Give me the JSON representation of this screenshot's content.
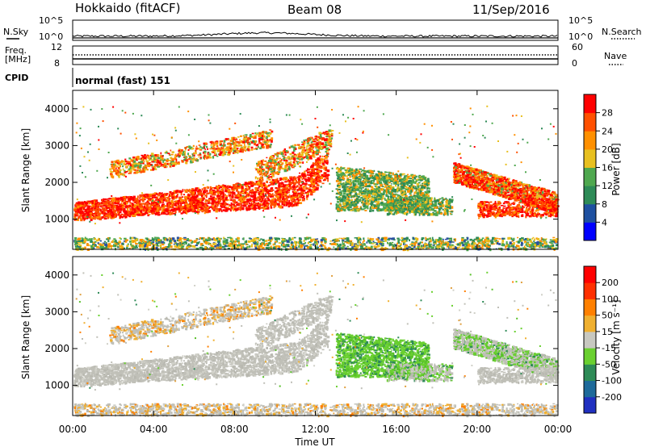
{
  "header": {
    "title": "Hokkaido (fitACF)",
    "beam": "Beam 08",
    "date": "11/Sep/2016"
  },
  "top_panels": {
    "nsky_label": "N.Sky",
    "nsearch_label": "N.Search",
    "nsky_ticks": [
      "10^5",
      "10^0"
    ],
    "nsearch_ticks": [
      "10^5",
      "10^0"
    ],
    "freq_label": "Freq.",
    "freq_unit": "[MHz]",
    "freq_ticks": [
      "12",
      "8"
    ],
    "nave_label": "Nave",
    "nave_ticks": [
      "60",
      "0"
    ],
    "cpid_label": "CPID",
    "cpid_text": "normal (fast) 151"
  },
  "chart_data": [
    {
      "type": "heatmap",
      "name": "power",
      "xlabel": "",
      "ylabel": "Slant Range [km]",
      "x_range_hours": [
        0,
        24
      ],
      "y_range_km": [
        180,
        4500
      ],
      "y_ticks": [
        1000,
        2000,
        3000,
        4000
      ],
      "colorbar_label": "Power [dB]",
      "colorbar_ticks": [
        4,
        8,
        12,
        16,
        20,
        24,
        28
      ],
      "colorbar_range": [
        0,
        32
      ],
      "colors": [
        "#0000ff",
        "#1e50a0",
        "#2e8b57",
        "#4fa84f",
        "#e8c020",
        "#ff9000",
        "#ff5000",
        "#ff0000"
      ]
    },
    {
      "type": "heatmap",
      "name": "velocity",
      "xlabel": "Time UT",
      "ylabel": "Slant Range [km]",
      "x_range_hours": [
        0,
        24
      ],
      "y_range_km": [
        180,
        4500
      ],
      "y_ticks": [
        1000,
        2000,
        3000,
        4000
      ],
      "x_ticks": [
        "00:00",
        "04:00",
        "08:00",
        "12:00",
        "16:00",
        "20:00",
        "00:00"
      ],
      "colorbar_label": "Velocity [m s⁻¹]",
      "colorbar_ticks": [
        "200",
        "100",
        "50",
        "15",
        "-15",
        "-50",
        "-100",
        "-200"
      ],
      "colors": [
        "#2030c0",
        "#1e6a9a",
        "#2e8b57",
        "#6ad030",
        "#c8c8c0",
        "#f0b030",
        "#ff8000",
        "#ff3000",
        "#ff0000"
      ],
      "ground_scatter_color": "#c0c0b8"
    }
  ],
  "time_axis": {
    "label": "Time UT",
    "ticks": [
      "00:00",
      "04:00",
      "08:00",
      "12:00",
      "16:00",
      "20:00",
      "00:00"
    ]
  }
}
